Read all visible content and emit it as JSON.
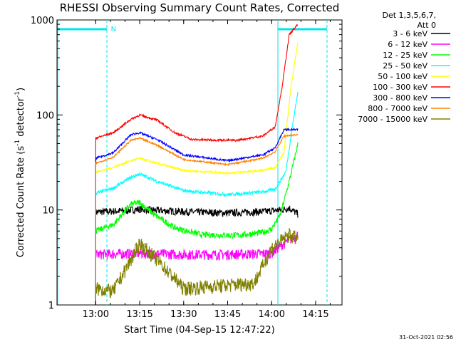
{
  "chart_data": {
    "type": "line",
    "title": "RHESSI Observing Summary Count Rates, Corrected",
    "xlabel": "Start Time (04-Sep-15 12:47:22)",
    "ylabel_main": "Corrected Count Rate (s",
    "ylabel_sup1": "-1",
    "ylabel_mid": " detector",
    "ylabel_sup2": "-1",
    "ylabel_end": ")",
    "y_scale": "log",
    "ylim": [
      1,
      1000
    ],
    "xlim_minutes": [
      12.78,
      14.4
    ],
    "x_ticks": [
      {
        "t": 13.0,
        "label": "13:00"
      },
      {
        "t": 13.25,
        "label": "13:15"
      },
      {
        "t": 13.5,
        "label": "13:30"
      },
      {
        "t": 13.75,
        "label": "13:45"
      },
      {
        "t": 14.0,
        "label": "14:00"
      },
      {
        "t": 14.25,
        "label": "14:15"
      }
    ],
    "y_ticks": [
      {
        "v": 1,
        "label": "1"
      },
      {
        "v": 10,
        "label": "10"
      },
      {
        "v": 100,
        "label": "100"
      },
      {
        "v": 1000,
        "label": "1000"
      }
    ],
    "legend_header": [
      "Det 1,3,5,6,7,",
      "Att 0"
    ],
    "legend_position": "right",
    "series": [
      {
        "name": "3 - 6 keV",
        "color": "#000000",
        "points": [
          [
            13.0,
            9.5
          ],
          [
            13.15,
            9.8
          ],
          [
            13.25,
            10.2
          ],
          [
            13.35,
            9.9
          ],
          [
            13.5,
            9.6
          ],
          [
            13.75,
            9.3
          ],
          [
            13.95,
            9.6
          ],
          [
            14.05,
            10.0
          ],
          [
            14.1,
            10.5
          ],
          [
            14.15,
            9.0
          ]
        ]
      },
      {
        "name": "6 - 12 keV",
        "color": "#ff00ff",
        "points": [
          [
            13.0,
            3.4
          ],
          [
            13.25,
            3.5
          ],
          [
            13.5,
            3.4
          ],
          [
            13.75,
            3.4
          ],
          [
            14.0,
            3.5
          ],
          [
            14.05,
            4.2
          ],
          [
            14.15,
            5.5
          ]
        ]
      },
      {
        "name": "12 - 25 keV",
        "color": "#00ff00",
        "points": [
          [
            13.0,
            6.0
          ],
          [
            13.1,
            7.0
          ],
          [
            13.2,
            11.5
          ],
          [
            13.25,
            12.0
          ],
          [
            13.33,
            9.0
          ],
          [
            13.45,
            6.5
          ],
          [
            13.6,
            5.5
          ],
          [
            13.8,
            5.4
          ],
          [
            13.95,
            5.8
          ],
          [
            14.0,
            6.3
          ],
          [
            14.05,
            9.0
          ],
          [
            14.1,
            20
          ],
          [
            14.15,
            50
          ]
        ]
      },
      {
        "name": "25 - 50 keV",
        "color": "#00ffff",
        "points": [
          [
            13.0,
            15
          ],
          [
            13.1,
            17
          ],
          [
            13.2,
            22
          ],
          [
            13.25,
            24
          ],
          [
            13.35,
            20
          ],
          [
            13.5,
            16
          ],
          [
            13.75,
            14.5
          ],
          [
            13.95,
            15.5
          ],
          [
            14.02,
            16.5
          ],
          [
            14.08,
            25
          ],
          [
            14.12,
            80
          ],
          [
            14.15,
            180
          ]
        ]
      },
      {
        "name": "50 - 100 keV",
        "color": "#ffff00",
        "points": [
          [
            13.0,
            25
          ],
          [
            13.1,
            28
          ],
          [
            13.2,
            33
          ],
          [
            13.25,
            35
          ],
          [
            13.35,
            31
          ],
          [
            13.5,
            26
          ],
          [
            13.75,
            24.5
          ],
          [
            13.95,
            26
          ],
          [
            14.02,
            28
          ],
          [
            14.07,
            40
          ],
          [
            14.11,
            200
          ],
          [
            14.15,
            600
          ]
        ]
      },
      {
        "name": "100 - 300 keV",
        "color": "#ff0000",
        "points": [
          [
            13.0,
            57
          ],
          [
            13.1,
            65
          ],
          [
            13.2,
            90
          ],
          [
            13.25,
            100
          ],
          [
            13.35,
            88
          ],
          [
            13.45,
            65
          ],
          [
            13.55,
            55
          ],
          [
            13.8,
            54
          ],
          [
            13.95,
            60
          ],
          [
            14.02,
            75
          ],
          [
            14.06,
            200
          ],
          [
            14.1,
            700
          ],
          [
            14.15,
            900
          ]
        ]
      },
      {
        "name": "300 - 800 keV",
        "color": "#0000ff",
        "points": [
          [
            13.0,
            35
          ],
          [
            13.1,
            40
          ],
          [
            13.2,
            62
          ],
          [
            13.25,
            65
          ],
          [
            13.35,
            55
          ],
          [
            13.5,
            38
          ],
          [
            13.75,
            33
          ],
          [
            13.95,
            38
          ],
          [
            14.02,
            45
          ],
          [
            14.07,
            70
          ],
          [
            14.15,
            70
          ]
        ]
      },
      {
        "name": "800 - 7000 keV",
        "color": "#ff8000",
        "points": [
          [
            13.0,
            31
          ],
          [
            13.1,
            36
          ],
          [
            13.2,
            54
          ],
          [
            13.25,
            57
          ],
          [
            13.35,
            48
          ],
          [
            13.5,
            34
          ],
          [
            13.75,
            30
          ],
          [
            13.95,
            35
          ],
          [
            14.02,
            41
          ],
          [
            14.07,
            60
          ],
          [
            14.15,
            62
          ]
        ]
      },
      {
        "name": "7000 - 15000 keV",
        "color": "#808000",
        "points": [
          [
            13.0,
            1.5
          ],
          [
            13.1,
            1.4
          ],
          [
            13.2,
            3.0
          ],
          [
            13.25,
            4.5
          ],
          [
            13.35,
            3.0
          ],
          [
            13.5,
            1.5
          ],
          [
            13.7,
            1.6
          ],
          [
            13.9,
            1.7
          ],
          [
            14.0,
            4.0
          ],
          [
            14.1,
            5.5
          ],
          [
            14.15,
            5.0
          ]
        ]
      }
    ],
    "annotations": [
      {
        "text": "N",
        "t": 13.07
      }
    ],
    "timestamp": "31-Oct-2021 02:56"
  }
}
